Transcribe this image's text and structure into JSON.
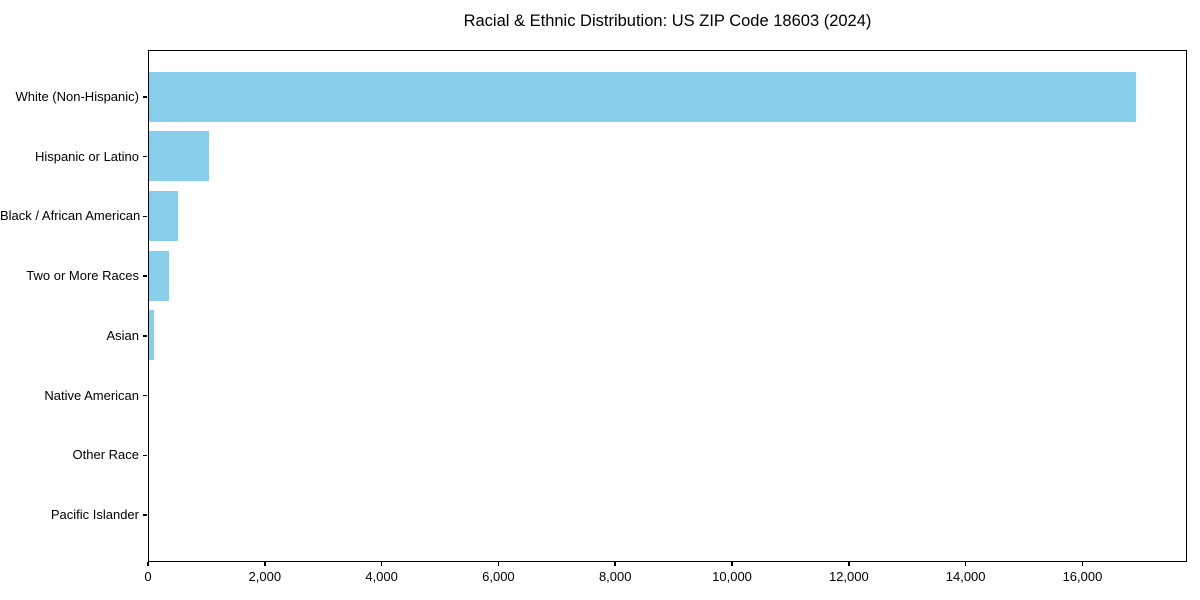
{
  "chart_data": {
    "type": "bar",
    "orientation": "horizontal",
    "title": "Racial & Ethnic Distribution: US ZIP Code 18603 (2024)",
    "categories": [
      "White (Non-Hispanic)",
      "Hispanic or Latino",
      "Black / African American",
      "Two or More Races",
      "Asian",
      "Native American",
      "Other Race",
      "Pacific Islander"
    ],
    "values": [
      16900,
      1030,
      490,
      335,
      85,
      0,
      0,
      0
    ],
    "xlabel": "",
    "ylabel": "",
    "xlim": [
      0,
      17790
    ],
    "x_ticks": [
      0,
      2000,
      4000,
      6000,
      8000,
      10000,
      12000,
      14000,
      16000
    ],
    "x_tick_labels": [
      "0",
      "2,000",
      "4,000",
      "6,000",
      "8,000",
      "10,000",
      "12,000",
      "14,000",
      "16,000"
    ],
    "bar_color": "#87CEEB",
    "axis_color": "#000000",
    "text_color": "#000000",
    "background": "#ffffff",
    "grid": false,
    "legend": null
  }
}
